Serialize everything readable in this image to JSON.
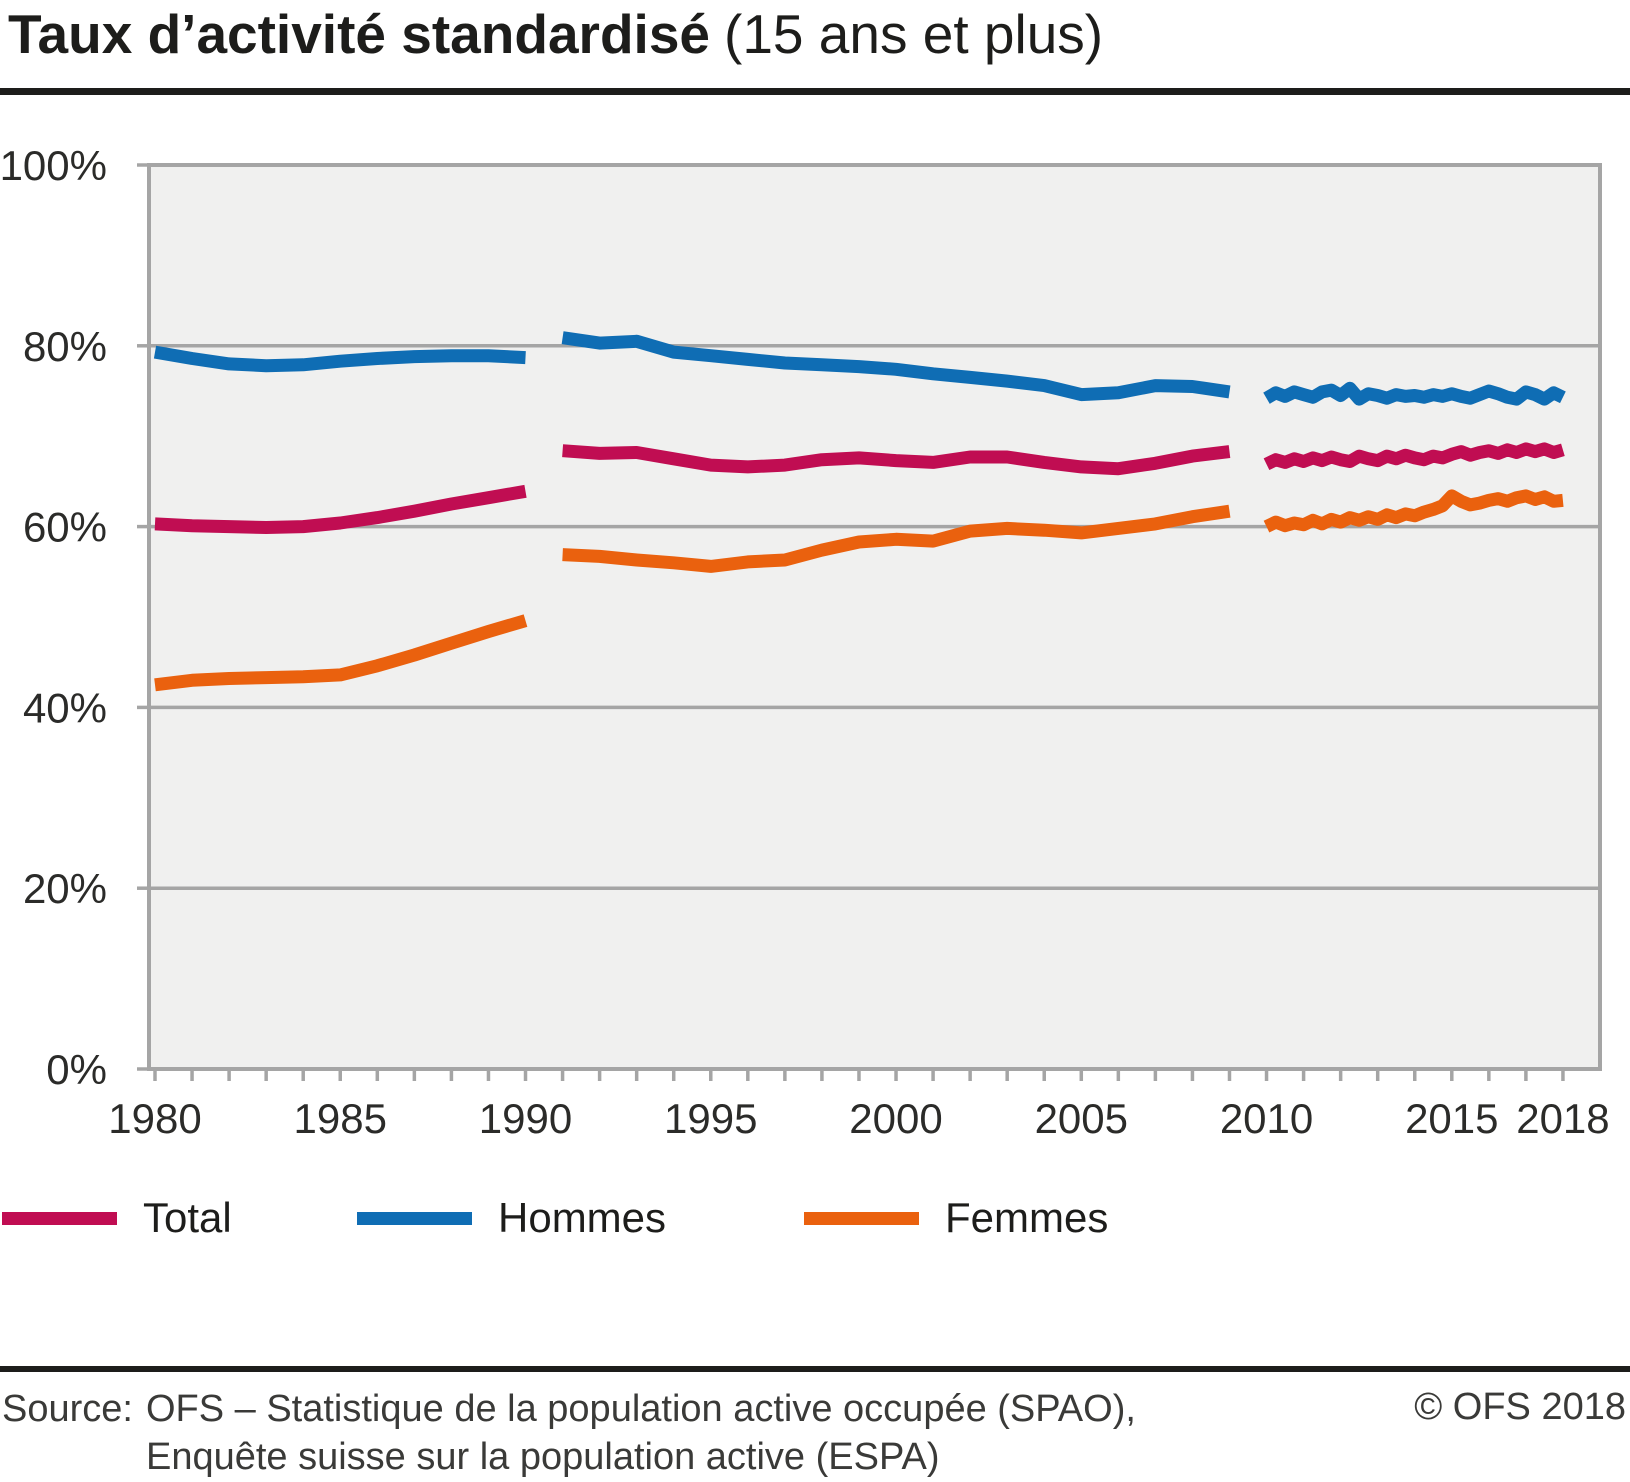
{
  "title": {
    "main": "Taux d’activité standardisé",
    "subtitle": "(15 ans et plus)"
  },
  "legend": {
    "items": [
      {
        "label": "Total",
        "color": "#c00d52"
      },
      {
        "label": "Hommes",
        "color": "#0f6db4"
      },
      {
        "label": "Femmes",
        "color": "#ea610e"
      }
    ]
  },
  "footer": {
    "source_label": "Source:",
    "source_line1": "OFS – Statistique de la population active occupée (SPAO),",
    "source_line2": "Enquête suisse sur la population active (ESPA)",
    "copyright": "© OFS 2018"
  },
  "colors": {
    "total": "#c00d52",
    "hommes": "#0f6db4",
    "femmes": "#ea610e",
    "plot_bg": "#f0f0ef",
    "grid": "#a5a5a5",
    "text": "#1d1d1b"
  },
  "chart_data": {
    "type": "line",
    "title": "Taux d’activité standardisé (15 ans et plus)",
    "xlabel": "",
    "ylabel": "",
    "unit": "%",
    "grid": true,
    "legend_position": "bottom",
    "x_axis": {
      "min": 1980,
      "max": 2019,
      "tick_step": 1,
      "tick_first": 1980,
      "tick_last": 2018,
      "label_years": [
        1980,
        1985,
        1990,
        1995,
        2000,
        2005,
        2010,
        2015,
        2018
      ]
    },
    "y_axis": {
      "min": 0,
      "max": 100,
      "grid_values": [
        20,
        40,
        60,
        80
      ],
      "tick_values": [
        0,
        20,
        40,
        60,
        80,
        100
      ],
      "tick_labels": [
        "0%",
        "20%",
        "40%",
        "60%",
        "80%",
        "100%"
      ]
    },
    "series": [
      {
        "name": "Total",
        "color": "#c00d52",
        "segments": [
          {
            "period": "1980–1990",
            "x_start": 1980,
            "x_step": 1,
            "values": [
              60.3,
              60.1,
              60.0,
              59.9,
              60.0,
              60.4,
              61.0,
              61.7,
              62.5,
              63.2,
              63.9
            ]
          },
          {
            "period": "1991–2009",
            "x_start": 1991,
            "x_step": 1,
            "values": [
              68.4,
              68.1,
              68.2,
              67.5,
              66.8,
              66.6,
              66.8,
              67.4,
              67.6,
              67.3,
              67.1,
              67.7,
              67.7,
              67.1,
              66.6,
              66.4,
              67.0,
              67.8,
              68.3
            ]
          },
          {
            "period": "2010–2018 trimestriel",
            "x_start": 2010,
            "x_step": 0.25,
            "values": [
              66.9,
              67.4,
              67.1,
              67.5,
              67.2,
              67.6,
              67.3,
              67.7,
              67.4,
              67.2,
              67.8,
              67.5,
              67.3,
              67.8,
              67.5,
              67.9,
              67.6,
              67.4,
              67.8,
              67.6,
              68.0,
              68.3,
              67.9,
              68.2,
              68.4,
              68.1,
              68.5,
              68.2,
              68.6,
              68.3,
              68.6,
              68.2,
              68.5
            ]
          }
        ]
      },
      {
        "name": "Hommes",
        "color": "#0f6db4",
        "segments": [
          {
            "period": "1980–1990",
            "x_start": 1980,
            "x_step": 1,
            "values": [
              79.3,
              78.6,
              78.0,
              77.8,
              77.9,
              78.3,
              78.6,
              78.8,
              78.9,
              78.9,
              78.7
            ]
          },
          {
            "period": "1991–2009",
            "x_start": 1991,
            "x_step": 1,
            "values": [
              80.9,
              80.3,
              80.5,
              79.3,
              78.9,
              78.5,
              78.1,
              77.9,
              77.7,
              77.4,
              76.9,
              76.5,
              76.1,
              75.6,
              74.6,
              74.8,
              75.6,
              75.5,
              74.9
            ]
          },
          {
            "period": "2010–2018 trimestriel",
            "x_start": 2010,
            "x_step": 0.25,
            "values": [
              74.2,
              74.8,
              74.4,
              74.9,
              74.6,
              74.3,
              74.9,
              75.1,
              74.5,
              75.3,
              74.1,
              74.7,
              74.5,
              74.2,
              74.6,
              74.4,
              74.5,
              74.3,
              74.6,
              74.4,
              74.7,
              74.4,
              74.2,
              74.6,
              75.0,
              74.7,
              74.3,
              74.1,
              74.9,
              74.6,
              74.1,
              74.8,
              74.3
            ]
          }
        ]
      },
      {
        "name": "Femmes",
        "color": "#ea610e",
        "segments": [
          {
            "period": "1980–1990",
            "x_start": 1980,
            "x_step": 1,
            "values": [
              42.5,
              43.0,
              43.2,
              43.3,
              43.4,
              43.6,
              44.6,
              45.8,
              47.1,
              48.4,
              49.6
            ]
          },
          {
            "period": "1991–2009",
            "x_start": 1991,
            "x_step": 1,
            "values": [
              56.9,
              56.7,
              56.3,
              56.0,
              55.6,
              56.1,
              56.3,
              57.4,
              58.3,
              58.6,
              58.4,
              59.5,
              59.8,
              59.6,
              59.3,
              59.8,
              60.3,
              61.1,
              61.7
            ]
          },
          {
            "period": "2010–2018 trimestriel",
            "x_start": 2010,
            "x_step": 0.25,
            "values": [
              60.0,
              60.5,
              60.1,
              60.4,
              60.2,
              60.7,
              60.3,
              60.8,
              60.5,
              61.0,
              60.7,
              61.1,
              60.8,
              61.3,
              61.0,
              61.4,
              61.2,
              61.6,
              61.9,
              62.3,
              63.4,
              62.8,
              62.4,
              62.6,
              62.9,
              63.1,
              62.8,
              63.2,
              63.4,
              63.0,
              63.3,
              62.8,
              62.9
            ]
          }
        ]
      }
    ]
  }
}
